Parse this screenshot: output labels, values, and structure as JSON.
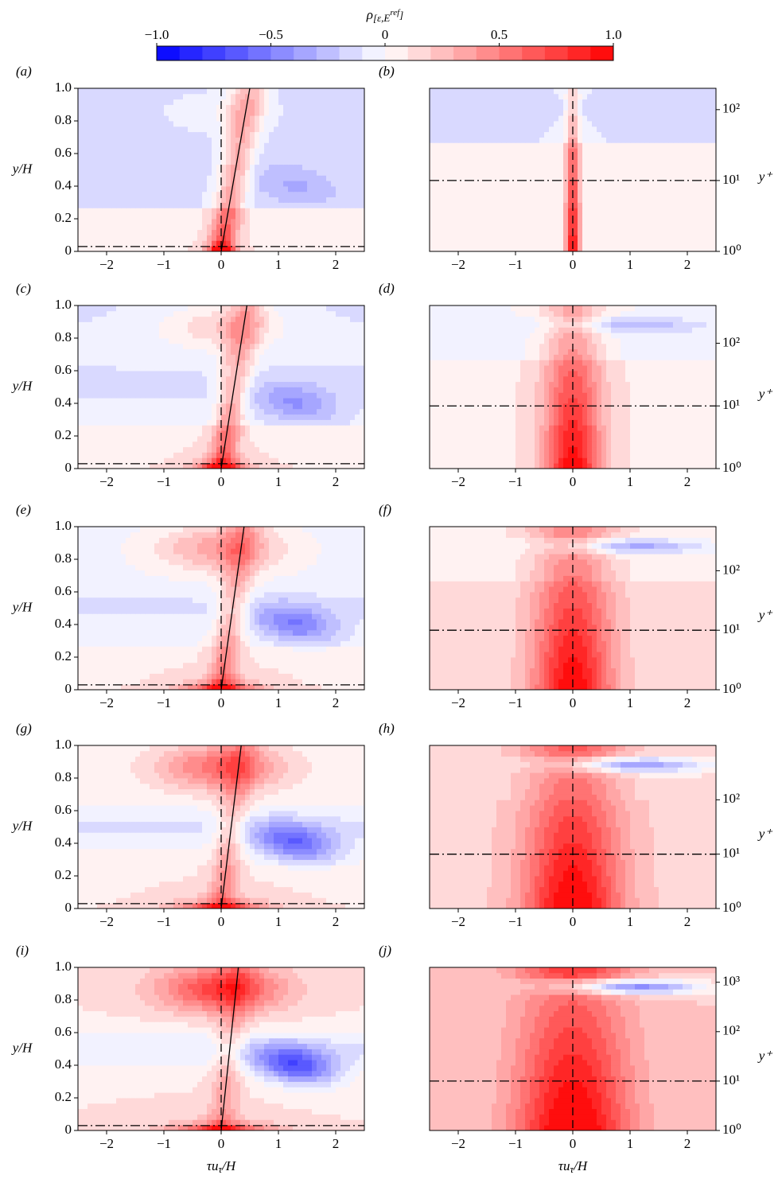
{
  "colorbar": {
    "label": [
      "ρ",
      "[ε,E",
      "ref",
      "]"
    ],
    "lim": [
      -1,
      1
    ],
    "levels": 20,
    "cmap": [
      "#0000ff",
      "#ffffff",
      "#ff0000"
    ],
    "ticks": [
      {
        "value": -1,
        "label": "−1.0"
      },
      {
        "value": -0.5,
        "label": "−0.5"
      },
      0,
      0.5,
      {
        "value": 1,
        "label": "1.0"
      }
    ]
  },
  "chart_data": [
    {
      "type": "contour",
      "label": "(a)",
      "ylabel": "y/H",
      "xlim": [
        -2.5,
        2.5
      ],
      "xticks": [
        {
          "value": -2,
          "label": "−2"
        },
        {
          "value": -1,
          "label": "−1"
        },
        0,
        1,
        2
      ],
      "ylim": [
        0,
        1
      ],
      "yticks": [
        0,
        0.2,
        0.4,
        0.6,
        0.8,
        {
          "value": 1,
          "label": "1.0"
        }
      ]
    },
    {
      "type": "contour",
      "label": "(b)",
      "y2label": "y⁺",
      "log_y2": true,
      "xlim": [
        -2.5,
        2.5
      ],
      "xticks": [
        {
          "value": -2,
          "label": "−2"
        },
        {
          "value": -1,
          "label": "−1"
        },
        0,
        1,
        2
      ],
      "y2lim": [
        1,
        200
      ],
      "y2ticks": [
        {
          "value": 1,
          "label": "10⁰"
        },
        {
          "value": 10,
          "label": "10¹"
        },
        {
          "value": 100,
          "label": "10²"
        }
      ]
    },
    {
      "type": "contour",
      "label": "(c)",
      "ylabel": "y/H",
      "xlim": [
        -2.5,
        2.5
      ],
      "xticks": [
        {
          "value": -2,
          "label": "−2"
        },
        {
          "value": -1,
          "label": "−1"
        },
        0,
        1,
        2
      ],
      "ylim": [
        0,
        1
      ],
      "yticks": [
        0,
        0.2,
        0.4,
        0.6,
        0.8,
        {
          "value": 1,
          "label": "1.0"
        }
      ]
    },
    {
      "type": "contour",
      "label": "(d)",
      "y2label": "y⁺",
      "log_y2": true,
      "xlim": [
        -2.5,
        2.5
      ],
      "xticks": [
        {
          "value": -2,
          "label": "−2"
        },
        {
          "value": -1,
          "label": "−1"
        },
        0,
        1,
        2
      ],
      "y2lim": [
        1,
        400
      ],
      "y2ticks": [
        {
          "value": 1,
          "label": "10⁰"
        },
        {
          "value": 10,
          "label": "10¹"
        },
        {
          "value": 100,
          "label": "10²"
        }
      ]
    },
    {
      "type": "contour",
      "label": "(e)",
      "ylabel": "y/H",
      "xlim": [
        -2.5,
        2.5
      ],
      "xticks": [
        {
          "value": -2,
          "label": "−2"
        },
        {
          "value": -1,
          "label": "−1"
        },
        0,
        1,
        2
      ],
      "ylim": [
        0,
        1
      ],
      "yticks": [
        0,
        0.2,
        0.4,
        0.6,
        0.8,
        {
          "value": 1,
          "label": "1.0"
        }
      ]
    },
    {
      "type": "contour",
      "label": "(f)",
      "y2label": "y⁺",
      "log_y2": true,
      "xlim": [
        -2.5,
        2.5
      ],
      "xticks": [
        {
          "value": -2,
          "label": "−2"
        },
        {
          "value": -1,
          "label": "−1"
        },
        0,
        1,
        2
      ],
      "y2lim": [
        1,
        550
      ],
      "y2ticks": [
        {
          "value": 1,
          "label": "10⁰"
        },
        {
          "value": 10,
          "label": "10¹"
        },
        {
          "value": 100,
          "label": "10²"
        }
      ]
    },
    {
      "type": "contour",
      "label": "(g)",
      "ylabel": "y/H",
      "xlim": [
        -2.5,
        2.5
      ],
      "xticks": [
        {
          "value": -2,
          "label": "−2"
        },
        {
          "value": -1,
          "label": "−1"
        },
        0,
        1,
        2
      ],
      "ylim": [
        0,
        1
      ],
      "yticks": [
        0,
        0.2,
        0.4,
        0.6,
        0.8,
        {
          "value": 1,
          "label": "1.0"
        }
      ]
    },
    {
      "type": "contour",
      "label": "(h)",
      "y2label": "y⁺",
      "log_y2": true,
      "xlim": [
        -2.5,
        2.5
      ],
      "xticks": [
        {
          "value": -2,
          "label": "−2"
        },
        {
          "value": -1,
          "label": "−1"
        },
        0,
        1,
        2
      ],
      "y2lim": [
        1,
        1000
      ],
      "y2ticks": [
        {
          "value": 1,
          "label": "10⁰"
        },
        {
          "value": 10,
          "label": "10¹"
        },
        {
          "value": 100,
          "label": "10²"
        }
      ]
    },
    {
      "type": "contour",
      "label": "(i)",
      "ylabel": "y/H",
      "xlabel": [
        "τu",
        "τ",
        "/H"
      ],
      "xlim": [
        -2.5,
        2.5
      ],
      "xticks": [
        {
          "value": -2,
          "label": "−2"
        },
        {
          "value": -1,
          "label": "−1"
        },
        0,
        1,
        2
      ],
      "ylim": [
        0,
        1
      ],
      "yticks": [
        0,
        0.2,
        0.4,
        0.6,
        0.8,
        {
          "value": 1,
          "label": "1.0"
        }
      ]
    },
    {
      "type": "contour",
      "label": "(j)",
      "y2label": "y⁺",
      "log_y2": true,
      "xlabel": [
        "τu",
        "τ",
        "/H"
      ],
      "xlim": [
        -2.5,
        2.5
      ],
      "xticks": [
        {
          "value": -2,
          "label": "−2"
        },
        {
          "value": -1,
          "label": "−1"
        },
        0,
        1,
        2
      ],
      "y2lim": [
        1,
        2000
      ],
      "y2ticks": [
        {
          "value": 1,
          "label": "10⁰"
        },
        {
          "value": 10,
          "label": "10¹"
        },
        {
          "value": 100,
          "label": "10²"
        },
        {
          "value": 1000,
          "label": "10³"
        }
      ]
    }
  ]
}
